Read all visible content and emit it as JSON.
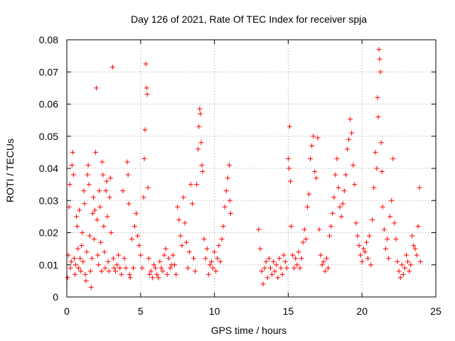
{
  "chart_data": {
    "type": "scatter",
    "title": "Day 126 of 2021, Rate Of TEC Index for receiver spja",
    "xlabel": "GPS time / hours",
    "ylabel": "ROTI / TECUs",
    "xlim": [
      0,
      25
    ],
    "ylim": [
      0,
      0.08
    ],
    "xticks": [
      0,
      5,
      10,
      15,
      20,
      25
    ],
    "yticks": [
      0,
      0.01,
      0.02,
      0.03,
      0.04,
      0.05,
      0.06,
      0.07,
      0.08
    ],
    "xtick_labels": [
      "0",
      "5",
      "10",
      "15",
      "20",
      "25"
    ],
    "ytick_labels": [
      "0",
      "0.01",
      "0.02",
      "0.03",
      "0.04",
      "0.05",
      "0.06",
      "0.07",
      "0.08"
    ],
    "grid": true,
    "marker": "+",
    "color": "#ff0000",
    "series": [
      {
        "name": "ROTI",
        "points": [
          [
            0.05,
            0.006
          ],
          [
            0.1,
            0.013
          ],
          [
            0.15,
            0.028
          ],
          [
            0.2,
            0.035
          ],
          [
            0.25,
            0.009
          ],
          [
            0.3,
            0.011
          ],
          [
            0.35,
            0.041
          ],
          [
            0.4,
            0.045
          ],
          [
            0.45,
            0.038
          ],
          [
            0.5,
            0.012
          ],
          [
            0.55,
            0.007
          ],
          [
            0.6,
            0.01
          ],
          [
            0.65,
            0.025
          ],
          [
            0.7,
            0.022
          ],
          [
            0.75,
            0.015
          ],
          [
            0.8,
            0.009
          ],
          [
            0.85,
            0.027
          ],
          [
            0.9,
            0.012
          ],
          [
            0.95,
            0.008
          ],
          [
            1.0,
            0.016
          ],
          [
            1.05,
            0.02
          ],
          [
            1.1,
            0.011
          ],
          [
            1.15,
            0.033
          ],
          [
            1.2,
            0.029
          ],
          [
            1.25,
            0.007
          ],
          [
            1.3,
            0.005
          ],
          [
            1.35,
            0.014
          ],
          [
            1.4,
            0.038
          ],
          [
            1.45,
            0.041
          ],
          [
            1.5,
            0.035
          ],
          [
            1.55,
            0.019
          ],
          [
            1.6,
            0.008
          ],
          [
            1.65,
            0.003
          ],
          [
            1.7,
            0.012
          ],
          [
            1.75,
            0.026
          ],
          [
            1.8,
            0.031
          ],
          [
            1.85,
            0.018
          ],
          [
            1.9,
            0.027
          ],
          [
            1.95,
            0.045
          ],
          [
            2.0,
            0.065
          ],
          [
            2.05,
            0.024
          ],
          [
            2.1,
            0.013
          ],
          [
            2.15,
            0.01
          ],
          [
            2.2,
            0.033
          ],
          [
            2.25,
            0.028
          ],
          [
            2.3,
            0.017
          ],
          [
            2.35,
            0.008
          ],
          [
            2.4,
            0.042
          ],
          [
            2.45,
            0.038
          ],
          [
            2.5,
            0.022
          ],
          [
            2.55,
            0.014
          ],
          [
            2.6,
            0.009
          ],
          [
            2.65,
            0.033
          ],
          [
            2.7,
            0.036
          ],
          [
            2.75,
            0.025
          ],
          [
            2.8,
            0.011
          ],
          [
            2.85,
            0.008
          ],
          [
            2.9,
            0.031
          ],
          [
            2.95,
            0.037
          ],
          [
            3.0,
            0.02
          ],
          [
            3.1,
            0.0715
          ],
          [
            3.15,
            0.012
          ],
          [
            3.2,
            0.009
          ],
          [
            3.3,
            0.008
          ],
          [
            3.4,
            0.01
          ],
          [
            3.5,
            0.013
          ],
          [
            3.6,
            0.009
          ],
          [
            3.7,
            0.007
          ],
          [
            3.8,
            0.033
          ],
          [
            3.9,
            0.012
          ],
          [
            4.0,
            0.009
          ],
          [
            4.1,
            0.042
          ],
          [
            4.15,
            0.038
          ],
          [
            4.2,
            0.029
          ],
          [
            4.25,
            0.007
          ],
          [
            4.3,
            0.006
          ],
          [
            4.4,
            0.018
          ],
          [
            4.5,
            0.009
          ],
          [
            4.6,
            0.022
          ],
          [
            4.7,
            0.026
          ],
          [
            4.8,
            0.019
          ],
          [
            4.9,
            0.016
          ],
          [
            5.0,
            0.013
          ],
          [
            5.1,
            0.009
          ],
          [
            5.2,
            0.031
          ],
          [
            5.25,
            0.043
          ],
          [
            5.3,
            0.052
          ],
          [
            5.35,
            0.0725
          ],
          [
            5.4,
            0.065
          ],
          [
            5.45,
            0.063
          ],
          [
            5.5,
            0.034
          ],
          [
            5.55,
            0.012
          ],
          [
            5.6,
            0.007
          ],
          [
            5.7,
            0.008
          ],
          [
            5.8,
            0.006
          ],
          [
            5.9,
            0.01
          ],
          [
            6.0,
            0.009
          ],
          [
            6.1,
            0.007
          ],
          [
            6.2,
            0.006
          ],
          [
            6.3,
            0.011
          ],
          [
            6.4,
            0.009
          ],
          [
            6.5,
            0.008
          ],
          [
            6.6,
            0.013
          ],
          [
            6.7,
            0.015
          ],
          [
            6.8,
            0.007
          ],
          [
            6.9,
            0.012
          ],
          [
            7.0,
            0.009
          ],
          [
            7.1,
            0.01
          ],
          [
            7.2,
            0.013
          ],
          [
            7.3,
            0.01
          ],
          [
            7.4,
            0.007
          ],
          [
            7.5,
            0.028
          ],
          [
            7.6,
            0.024
          ],
          [
            7.7,
            0.019
          ],
          [
            7.8,
            0.016
          ],
          [
            7.9,
            0.031
          ],
          [
            8.0,
            0.023
          ],
          [
            8.1,
            0.017
          ],
          [
            8.2,
            0.009
          ],
          [
            8.3,
            0.014
          ],
          [
            8.4,
            0.035
          ],
          [
            8.5,
            0.029
          ],
          [
            8.6,
            0.012
          ],
          [
            8.7,
            0.008
          ],
          [
            8.8,
            0.035
          ],
          [
            8.9,
            0.046
          ],
          [
            8.95,
            0.053
          ],
          [
            9.0,
            0.0585
          ],
          [
            9.05,
            0.057
          ],
          [
            9.1,
            0.048
          ],
          [
            9.15,
            0.041
          ],
          [
            9.2,
            0.039
          ],
          [
            9.3,
            0.018
          ],
          [
            9.4,
            0.012
          ],
          [
            9.5,
            0.015
          ],
          [
            9.6,
            0.007
          ],
          [
            9.7,
            0.01
          ],
          [
            9.8,
            0.011
          ],
          [
            9.9,
            0.009
          ],
          [
            10.0,
            0.014
          ],
          [
            10.1,
            0.008
          ],
          [
            10.2,
            0.012
          ],
          [
            10.3,
            0.016
          ],
          [
            10.4,
            0.011
          ],
          [
            10.5,
            0.018
          ],
          [
            10.6,
            0.022
          ],
          [
            10.7,
            0.028
          ],
          [
            10.8,
            0.033
          ],
          [
            10.9,
            0.037
          ],
          [
            11.0,
            0.041
          ],
          [
            11.05,
            0.03
          ],
          [
            11.1,
            0.026
          ],
          [
            13.0,
            0.021
          ],
          [
            13.1,
            0.015
          ],
          [
            13.2,
            0.008
          ],
          [
            13.3,
            0.004
          ],
          [
            13.4,
            0.009
          ],
          [
            13.5,
            0.011
          ],
          [
            13.6,
            0.006
          ],
          [
            13.7,
            0.012
          ],
          [
            13.8,
            0.009
          ],
          [
            13.9,
            0.007
          ],
          [
            14.0,
            0.011
          ],
          [
            14.1,
            0.008
          ],
          [
            14.2,
            0.01
          ],
          [
            14.3,
            0.006
          ],
          [
            14.4,
            0.012
          ],
          [
            14.5,
            0.009
          ],
          [
            14.6,
            0.007
          ],
          [
            14.7,
            0.013
          ],
          [
            14.8,
            0.011
          ],
          [
            14.9,
            0.009
          ],
          [
            15.0,
            0.043
          ],
          [
            15.05,
            0.04
          ],
          [
            15.1,
            0.053
          ],
          [
            15.15,
            0.036
          ],
          [
            15.2,
            0.022
          ],
          [
            15.3,
            0.013
          ],
          [
            15.4,
            0.009
          ],
          [
            15.5,
            0.012
          ],
          [
            15.6,
            0.01
          ],
          [
            15.7,
            0.014
          ],
          [
            15.8,
            0.009
          ],
          [
            15.9,
            0.012
          ],
          [
            16.0,
            0.017
          ],
          [
            16.1,
            0.021
          ],
          [
            16.2,
            0.018
          ],
          [
            16.3,
            0.028
          ],
          [
            16.4,
            0.032
          ],
          [
            16.5,
            0.043
          ],
          [
            16.6,
            0.047
          ],
          [
            16.7,
            0.05
          ],
          [
            16.8,
            0.039
          ],
          [
            16.9,
            0.037
          ],
          [
            17.0,
            0.0495
          ],
          [
            17.1,
            0.021
          ],
          [
            17.2,
            0.013
          ],
          [
            17.3,
            0.01
          ],
          [
            17.4,
            0.011
          ],
          [
            17.5,
            0.008
          ],
          [
            17.6,
            0.012
          ],
          [
            17.7,
            0.009
          ],
          [
            17.8,
            0.019
          ],
          [
            17.9,
            0.022
          ],
          [
            18.0,
            0.026
          ],
          [
            18.1,
            0.031
          ],
          [
            18.2,
            0.038
          ],
          [
            18.3,
            0.043
          ],
          [
            18.4,
            0.034
          ],
          [
            18.5,
            0.028
          ],
          [
            18.6,
            0.025
          ],
          [
            18.7,
            0.029
          ],
          [
            18.8,
            0.033
          ],
          [
            18.9,
            0.038
          ],
          [
            19.0,
            0.046
          ],
          [
            19.1,
            0.049
          ],
          [
            19.2,
            0.0553
          ],
          [
            19.3,
            0.051
          ],
          [
            19.4,
            0.041
          ],
          [
            19.5,
            0.035
          ],
          [
            19.6,
            0.023
          ],
          [
            19.7,
            0.019
          ],
          [
            19.8,
            0.016
          ],
          [
            19.9,
            0.013
          ],
          [
            20.0,
            0.011
          ],
          [
            20.1,
            0.015
          ],
          [
            20.2,
            0.014
          ],
          [
            20.3,
            0.017
          ],
          [
            20.4,
            0.012
          ],
          [
            20.5,
            0.019
          ],
          [
            20.6,
            0.01
          ],
          [
            20.7,
            0.024
          ],
          [
            20.8,
            0.034
          ],
          [
            20.9,
            0.045
          ],
          [
            21.0,
            0.04
          ],
          [
            21.05,
            0.062
          ],
          [
            21.1,
            0.056
          ],
          [
            21.15,
            0.077
          ],
          [
            21.2,
            0.074
          ],
          [
            21.25,
            0.07
          ],
          [
            21.3,
            0.048
          ],
          [
            21.35,
            0.039
          ],
          [
            21.4,
            0.028
          ],
          [
            21.5,
            0.021
          ],
          [
            21.6,
            0.015
          ],
          [
            21.7,
            0.018
          ],
          [
            21.8,
            0.012
          ],
          [
            21.9,
            0.025
          ],
          [
            22.0,
            0.03
          ],
          [
            22.1,
            0.043
          ],
          [
            22.2,
            0.023
          ],
          [
            22.3,
            0.018
          ],
          [
            22.4,
            0.011
          ],
          [
            22.5,
            0.008
          ],
          [
            22.6,
            0.006
          ],
          [
            22.7,
            0.01
          ],
          [
            22.8,
            0.007
          ],
          [
            22.9,
            0.009
          ],
          [
            23.0,
            0.013
          ],
          [
            23.1,
            0.011
          ],
          [
            23.2,
            0.008
          ],
          [
            23.3,
            0.01
          ],
          [
            23.4,
            0.019
          ],
          [
            23.5,
            0.016
          ],
          [
            23.6,
            0.015
          ],
          [
            23.7,
            0.013
          ],
          [
            23.8,
            0.022
          ],
          [
            23.9,
            0.034
          ],
          [
            23.95,
            0.011
          ]
        ]
      }
    ]
  }
}
